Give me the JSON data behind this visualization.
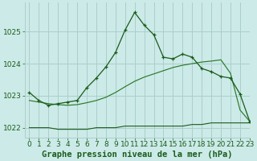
{
  "title": "Graphe pression niveau de la mer (hPa)",
  "background_color": "#cceae8",
  "grid_color": "#aacfcc",
  "line_color_dark": "#1a5c1a",
  "line_color_mid": "#2a7a2a",
  "xlim": [
    -0.5,
    23
  ],
  "ylim": [
    1021.7,
    1025.9
  ],
  "yticks": [
    1022,
    1023,
    1024,
    1025
  ],
  "xticks": [
    0,
    1,
    2,
    3,
    4,
    5,
    6,
    7,
    8,
    9,
    10,
    11,
    12,
    13,
    14,
    15,
    16,
    17,
    18,
    19,
    20,
    21,
    22,
    23
  ],
  "tick_fontsize": 6.5,
  "title_fontsize": 7.5,
  "series1_x": [
    0,
    1,
    2,
    3,
    4,
    5,
    6,
    7,
    8,
    9,
    10,
    11,
    12,
    13,
    14,
    15,
    16,
    17,
    18,
    19,
    20,
    21,
    22,
    23
  ],
  "series1_y": [
    1023.1,
    1022.85,
    1022.7,
    1022.75,
    1022.8,
    1022.85,
    1023.25,
    1023.55,
    1023.9,
    1024.35,
    1025.05,
    1025.6,
    1025.2,
    1024.9,
    1024.2,
    1024.15,
    1024.3,
    1024.2,
    1023.85,
    1023.75,
    1023.6,
    1023.55,
    1023.05,
    1022.2
  ],
  "series2_x": [
    0,
    1,
    2,
    3,
    4,
    5,
    6,
    7,
    8,
    9,
    10,
    11,
    12,
    13,
    14,
    15,
    16,
    17,
    18,
    19,
    20,
    21,
    22,
    23
  ],
  "series2_y": [
    1022.85,
    1022.8,
    1022.75,
    1022.72,
    1022.7,
    1022.72,
    1022.78,
    1022.85,
    1022.95,
    1023.1,
    1023.28,
    1023.45,
    1023.58,
    1023.68,
    1023.78,
    1023.88,
    1023.95,
    1024.0,
    1024.05,
    1024.08,
    1024.12,
    1023.7,
    1022.55,
    1022.2
  ],
  "series3_x": [
    0,
    1,
    2,
    3,
    4,
    5,
    6,
    7,
    8,
    9,
    10,
    11,
    12,
    13,
    14,
    15,
    16,
    17,
    18,
    19,
    20,
    21,
    22,
    23
  ],
  "series3_y": [
    1022.0,
    1022.0,
    1022.0,
    1021.95,
    1021.95,
    1021.95,
    1021.95,
    1022.0,
    1022.0,
    1022.0,
    1022.05,
    1022.05,
    1022.05,
    1022.05,
    1022.05,
    1022.05,
    1022.05,
    1022.1,
    1022.1,
    1022.15,
    1022.15,
    1022.15,
    1022.15,
    1022.15
  ]
}
